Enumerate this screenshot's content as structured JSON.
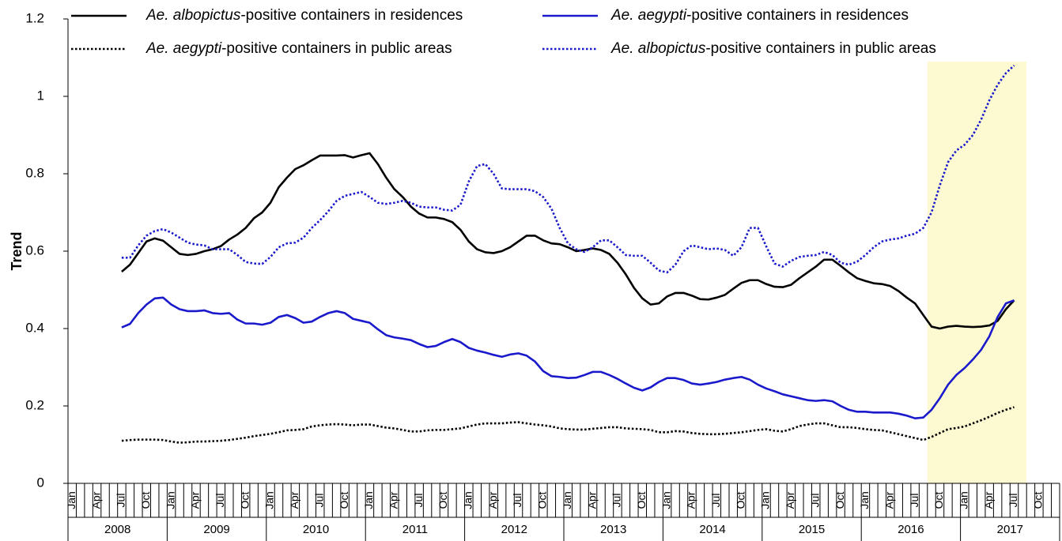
{
  "chart_data": {
    "type": "line",
    "y_label": "Trend",
    "ylim": [
      0,
      1.2
    ],
    "yticks": [
      0,
      0.2,
      0.4,
      0.6,
      0.8,
      1,
      1.2
    ],
    "legend": "top",
    "categories": [
      "Jan",
      null,
      null,
      "Apr",
      null,
      null,
      "Jul",
      null,
      null,
      "Oct",
      null,
      null,
      "Jan",
      null,
      null,
      "Apr",
      null,
      null,
      "Jul",
      null,
      null,
      "Oct",
      null,
      null,
      "Jan",
      null,
      null,
      "Apr",
      null,
      null,
      "Jul",
      null,
      null,
      "Oct",
      null,
      null,
      "Jan",
      null,
      null,
      "Apr",
      null,
      null,
      "Jul",
      null,
      null,
      "Oct",
      null,
      null,
      "Jan",
      null,
      null,
      "Apr",
      null,
      null,
      "Jul",
      null,
      null,
      "Oct",
      null,
      null,
      "Jan",
      null,
      null,
      "Apr",
      null,
      null,
      "Jul",
      null,
      null,
      "Oct",
      null,
      null,
      "Jan",
      null,
      null,
      "Apr",
      null,
      null,
      "Jul",
      null,
      null,
      "Oct",
      null,
      null,
      "Jan",
      null,
      null,
      "Apr",
      null,
      null,
      "Jul",
      null,
      null,
      "Oct",
      null,
      null,
      "Jan",
      null,
      null,
      "Apr",
      null,
      null,
      "Jul",
      null,
      null,
      "Oct",
      null,
      null,
      "Jan",
      null,
      null,
      "Apr",
      null,
      null,
      "Jul",
      null,
      null,
      "Oct",
      null,
      null
    ],
    "years": [
      "2008",
      "2009",
      "2010",
      "2011",
      "2012",
      "2013",
      "2014",
      "2015",
      "2016",
      "2017"
    ],
    "highlight": {
      "x": [
        104,
        116
      ],
      "y": [
        0,
        1.09
      ],
      "color": "#fdfad2"
    },
    "series": [
      {
        "name": "Ae. albopictus-positive containers in residences",
        "color": "#000000",
        "dash": "solid",
        "values": [
          null,
          null,
          null,
          null,
          null,
          null,
          0.547,
          0.565,
          0.595,
          0.625,
          0.633,
          0.627,
          0.61,
          0.593,
          0.59,
          0.593,
          0.6,
          0.605,
          0.613,
          0.63,
          0.643,
          0.66,
          0.685,
          0.7,
          0.725,
          0.765,
          0.79,
          0.812,
          0.822,
          0.835,
          0.847,
          0.847,
          0.847,
          0.848,
          0.842,
          0.848,
          0.853,
          0.825,
          0.79,
          0.76,
          0.74,
          0.715,
          0.697,
          0.687,
          0.687,
          0.683,
          0.675,
          0.655,
          0.625,
          0.605,
          0.597,
          0.595,
          0.6,
          0.61,
          0.625,
          0.64,
          0.64,
          0.628,
          0.62,
          0.618,
          0.61,
          0.6,
          0.603,
          0.607,
          0.603,
          0.593,
          0.57,
          0.54,
          0.505,
          0.478,
          0.462,
          0.465,
          0.483,
          0.492,
          0.492,
          0.485,
          0.476,
          0.475,
          0.48,
          0.487,
          0.503,
          0.518,
          0.525,
          0.525,
          0.515,
          0.508,
          0.507,
          0.513,
          0.53,
          0.545,
          0.56,
          0.578,
          0.578,
          0.562,
          0.545,
          0.53,
          0.523,
          0.517,
          0.515,
          0.51,
          0.497,
          0.48,
          0.465,
          0.435,
          0.405,
          0.4,
          0.405,
          0.407,
          0.405,
          0.404,
          0.405,
          0.408,
          0.42,
          0.45,
          0.473,
          null,
          null,
          null,
          null,
          null
        ]
      },
      {
        "name": "Ae. aegypti-positive containers in residences",
        "color": "#1a1acc",
        "dash": "solid",
        "values": [
          null,
          null,
          null,
          null,
          null,
          null,
          0.403,
          0.412,
          0.44,
          0.462,
          0.478,
          0.48,
          0.462,
          0.45,
          0.445,
          0.445,
          0.447,
          0.44,
          0.438,
          0.44,
          0.423,
          0.413,
          0.413,
          0.41,
          0.415,
          0.43,
          0.435,
          0.427,
          0.415,
          0.418,
          0.43,
          0.44,
          0.445,
          0.44,
          0.425,
          0.42,
          0.415,
          0.398,
          0.383,
          0.377,
          0.374,
          0.37,
          0.36,
          0.352,
          0.355,
          0.365,
          0.373,
          0.365,
          0.35,
          0.343,
          0.338,
          0.332,
          0.327,
          0.333,
          0.336,
          0.33,
          0.315,
          0.29,
          0.277,
          0.275,
          0.272,
          0.273,
          0.28,
          0.288,
          0.288,
          0.28,
          0.27,
          0.258,
          0.247,
          0.24,
          0.248,
          0.262,
          0.272,
          0.272,
          0.267,
          0.258,
          0.255,
          0.258,
          0.262,
          0.268,
          0.272,
          0.275,
          0.268,
          0.255,
          0.245,
          0.238,
          0.23,
          0.225,
          0.22,
          0.215,
          0.213,
          0.215,
          0.212,
          0.2,
          0.19,
          0.185,
          0.185,
          0.183,
          0.183,
          0.183,
          0.18,
          0.175,
          0.168,
          0.17,
          0.19,
          0.22,
          0.255,
          0.28,
          0.298,
          0.32,
          0.345,
          0.38,
          0.43,
          0.465,
          0.473,
          null,
          null,
          null,
          null,
          null
        ]
      },
      {
        "name": "Ae. aegypti-positive containers in public areas",
        "color": "#000000",
        "dash": "dotted",
        "values": [
          null,
          null,
          null,
          null,
          null,
          null,
          0.11,
          0.112,
          0.113,
          0.113,
          0.113,
          0.112,
          0.108,
          0.105,
          0.106,
          0.108,
          0.108,
          0.109,
          0.11,
          0.112,
          0.115,
          0.118,
          0.122,
          0.125,
          0.128,
          0.132,
          0.137,
          0.138,
          0.14,
          0.147,
          0.15,
          0.152,
          0.153,
          0.152,
          0.15,
          0.152,
          0.152,
          0.148,
          0.144,
          0.142,
          0.138,
          0.134,
          0.134,
          0.137,
          0.138,
          0.138,
          0.14,
          0.142,
          0.147,
          0.152,
          0.155,
          0.155,
          0.155,
          0.157,
          0.158,
          0.155,
          0.152,
          0.15,
          0.147,
          0.142,
          0.14,
          0.139,
          0.139,
          0.141,
          0.143,
          0.145,
          0.145,
          0.142,
          0.141,
          0.14,
          0.138,
          0.132,
          0.132,
          0.135,
          0.134,
          0.13,
          0.128,
          0.127,
          0.127,
          0.128,
          0.13,
          0.132,
          0.135,
          0.138,
          0.14,
          0.136,
          0.134,
          0.14,
          0.148,
          0.152,
          0.155,
          0.155,
          0.15,
          0.145,
          0.145,
          0.143,
          0.14,
          0.138,
          0.137,
          0.132,
          0.127,
          0.122,
          0.117,
          0.112,
          0.12,
          0.13,
          0.14,
          0.143,
          0.147,
          0.155,
          0.163,
          0.172,
          0.182,
          0.19,
          0.197,
          null,
          null,
          null,
          null,
          null
        ]
      },
      {
        "name": "Ae. albopictus-positive containers in public areas",
        "color": "#1a1acc",
        "dash": "dotted",
        "values": [
          null,
          null,
          null,
          null,
          null,
          null,
          0.583,
          0.583,
          0.615,
          0.64,
          0.652,
          0.657,
          0.648,
          0.635,
          0.622,
          0.617,
          0.615,
          0.605,
          0.605,
          0.605,
          0.59,
          0.572,
          0.568,
          0.567,
          0.585,
          0.61,
          0.62,
          0.622,
          0.635,
          0.66,
          0.68,
          0.703,
          0.73,
          0.743,
          0.748,
          0.753,
          0.74,
          0.725,
          0.722,
          0.725,
          0.73,
          0.725,
          0.715,
          0.713,
          0.713,
          0.707,
          0.705,
          0.72,
          0.78,
          0.82,
          0.825,
          0.8,
          0.762,
          0.76,
          0.76,
          0.76,
          0.755,
          0.74,
          0.71,
          0.66,
          0.62,
          0.605,
          0.598,
          0.61,
          0.628,
          0.628,
          0.61,
          0.59,
          0.588,
          0.588,
          0.57,
          0.55,
          0.545,
          0.565,
          0.6,
          0.615,
          0.61,
          0.605,
          0.607,
          0.603,
          0.588,
          0.61,
          0.66,
          0.66,
          0.612,
          0.568,
          0.56,
          0.575,
          0.585,
          0.588,
          0.59,
          0.598,
          0.59,
          0.57,
          0.565,
          0.573,
          0.59,
          0.61,
          0.625,
          0.63,
          0.633,
          0.64,
          0.645,
          0.66,
          0.7,
          0.77,
          0.83,
          0.86,
          0.875,
          0.9,
          0.94,
          0.99,
          1.03,
          1.06,
          1.08,
          null,
          null,
          null,
          null,
          null
        ]
      }
    ]
  }
}
